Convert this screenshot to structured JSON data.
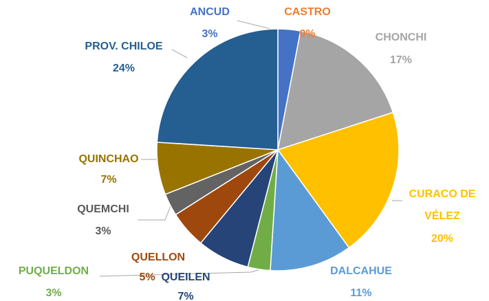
{
  "chart_data": {
    "type": "pie",
    "categories": [
      "ANCUD",
      "CASTRO",
      "CHONCHI",
      "CURACO DE VÉLEZ",
      "DALCAHUE",
      "PUQUELDON",
      "QUEILEN",
      "QUELLON",
      "QUEMCHI",
      "QUINCHAO",
      "PROV. CHILOE"
    ],
    "values": [
      3,
      0,
      17,
      20,
      11,
      3,
      7,
      5,
      3,
      7,
      24
    ],
    "value_labels": [
      "3%",
      "0%",
      "17%",
      "20%",
      "11%",
      "3%",
      "7%",
      "5%",
      "3%",
      "7%",
      "24%"
    ],
    "colors": [
      "#4472c4",
      "#ed7d31",
      "#a5a5a5",
      "#ffc000",
      "#5b9bd5",
      "#70ad47",
      "#264478",
      "#9e480e",
      "#636363",
      "#997300",
      "#255e91"
    ]
  }
}
